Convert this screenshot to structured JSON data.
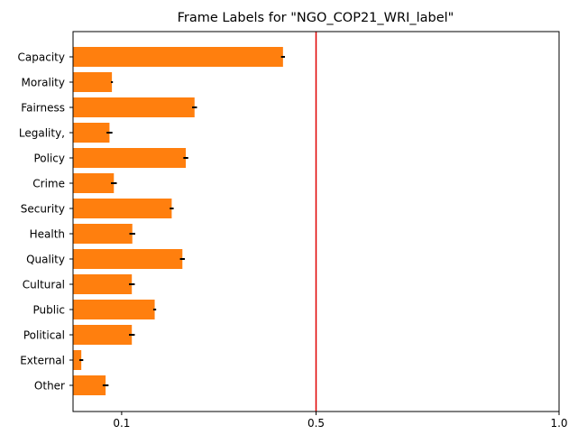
{
  "chart_data": {
    "type": "bar",
    "orientation": "horizontal",
    "title": "Frame Labels for \"NGO_COP21_WRI_label\"",
    "xlabel": "",
    "ylabel": "",
    "categories": [
      "Capacity",
      "Morality",
      "Fairness",
      "Legality,",
      "Policy",
      "Crime",
      "Security",
      "Health",
      "Quality",
      "Cultural",
      "Public",
      "Political",
      "External",
      "Other"
    ],
    "values": [
      0.432,
      0.08,
      0.25,
      0.075,
      0.232,
      0.084,
      0.203,
      0.122,
      0.225,
      0.121,
      0.168,
      0.121,
      0.017,
      0.067
    ],
    "errors": [
      0.004,
      0.002,
      0.005,
      0.006,
      0.005,
      0.006,
      0.004,
      0.006,
      0.005,
      0.006,
      0.003,
      0.006,
      0.004,
      0.006
    ],
    "xlim": [
      0.0,
      1.0
    ],
    "xticks": [
      0.1,
      0.5,
      1.0
    ],
    "xtick_labels": [
      "0.1",
      "0.5",
      "1.0"
    ],
    "reference_line": 0.5,
    "grid": false,
    "colors": {
      "bar": "#ff7f0e",
      "error": "#000000",
      "reference_line": "#e00000",
      "axes": "#000000"
    }
  }
}
